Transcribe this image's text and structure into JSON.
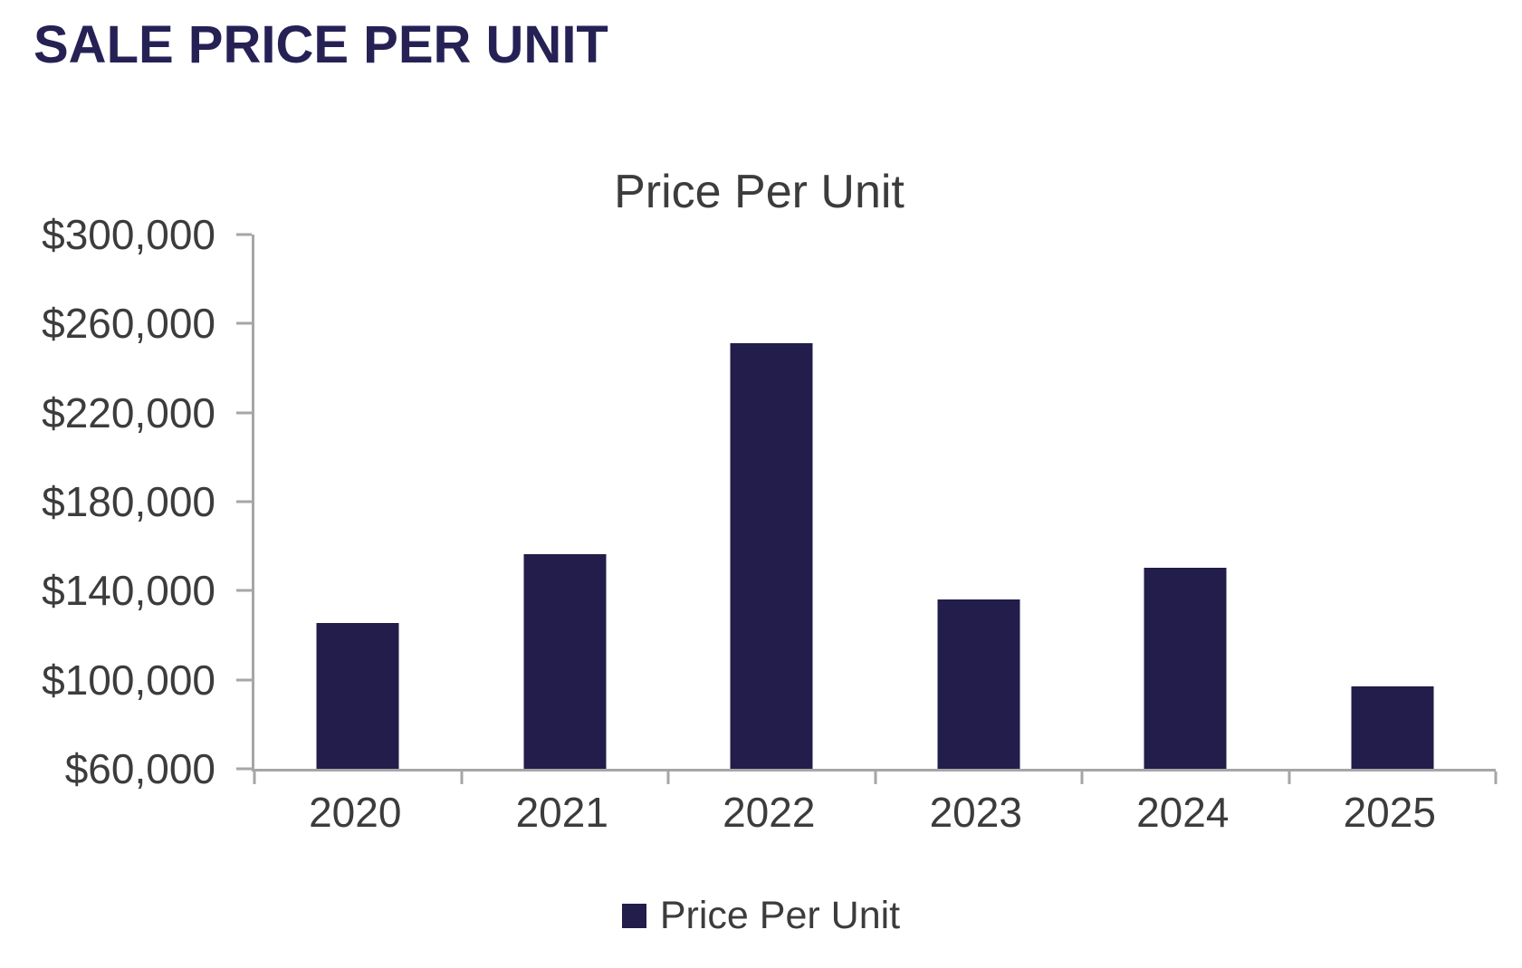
{
  "header": {
    "title": "SALE PRICE PER UNIT",
    "color": "#262155"
  },
  "chart_data": {
    "type": "bar",
    "title": "Price Per Unit",
    "categories": [
      "2020",
      "2021",
      "2022",
      "2023",
      "2024",
      "2025"
    ],
    "series": [
      {
        "name": "Price Per Unit",
        "values": [
          125500,
          156500,
          251000,
          136000,
          150500,
          97000
        ]
      }
    ],
    "xlabel": "",
    "ylabel": "",
    "ylim": [
      60000,
      300000
    ],
    "yticks": [
      300000,
      260000,
      220000,
      180000,
      140000,
      100000,
      60000
    ],
    "ytick_labels": [
      "$300,000",
      "$260,000",
      "$220,000",
      "$180,000",
      "$140,000",
      "$100,000",
      "$60,000"
    ],
    "grid": false,
    "legend": {
      "position": "bottom",
      "entries": [
        "Price Per Unit"
      ]
    },
    "bar_color": "#221D4B",
    "axis_color": "#A6A6A6",
    "text_color": "#3C3C3C"
  }
}
